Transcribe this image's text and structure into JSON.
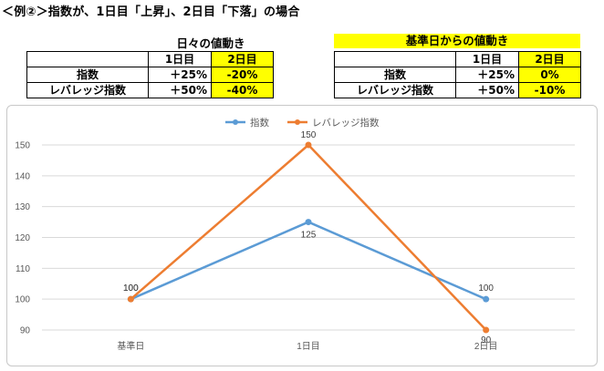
{
  "heading": "＜例②＞指数が、1日目「上昇」、2日目「下落」の場合",
  "tables": [
    {
      "title": "日々の値動き",
      "header": [
        "1日目",
        "2日目"
      ],
      "rows": [
        {
          "label": "指数",
          "values": [
            "＋25%",
            "-20%"
          ]
        },
        {
          "label": "レバレッジ指数",
          "values": [
            "＋50%",
            "-40%"
          ]
        }
      ]
    },
    {
      "title": "基準日からの値動き",
      "header": [
        "1日目",
        "2日目"
      ],
      "rows": [
        {
          "label": "指数",
          "values": [
            "＋25%",
            "0%"
          ]
        },
        {
          "label": "レバレッジ指数",
          "values": [
            "＋50%",
            "-10%"
          ]
        }
      ]
    }
  ],
  "colors": {
    "highlight": "#ffff00",
    "series_index": "#5b9bd5",
    "series_leveraged": "#ed7d31",
    "grid": "#d9d9d9"
  },
  "chart_data": {
    "type": "line",
    "categories": [
      "基準日",
      "1日目",
      "2日目"
    ],
    "series": [
      {
        "name": "指数",
        "values": [
          100,
          125,
          100
        ],
        "labels": [
          "100",
          "125",
          "100"
        ]
      },
      {
        "name": "レバレッジ指数",
        "values": [
          100,
          150,
          90
        ],
        "labels": [
          "100",
          "150",
          "90"
        ]
      }
    ],
    "yticks": [
      "150",
      "140",
      "130",
      "120",
      "110",
      "100",
      "90"
    ],
    "ylim": [
      90,
      150
    ],
    "grid": true,
    "legend": "top-center",
    "markers": "circle"
  }
}
